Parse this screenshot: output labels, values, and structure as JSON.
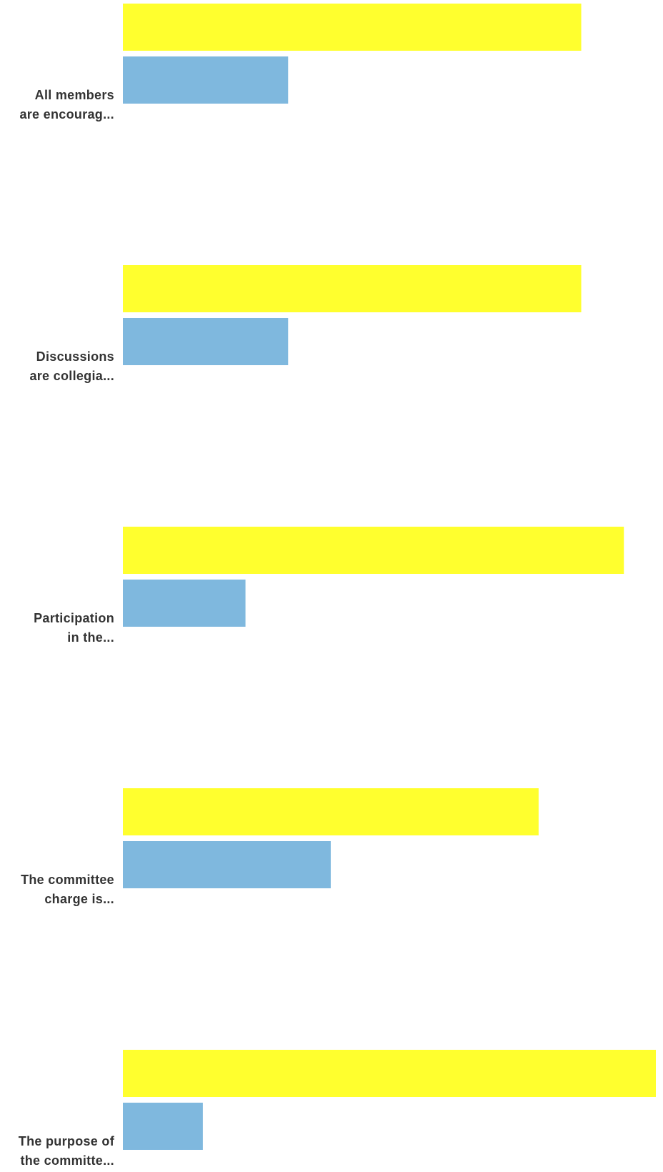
{
  "chart_data": {
    "type": "bar",
    "orientation": "horizontal",
    "categories": [
      [
        "All members",
        "are encourag..."
      ],
      [
        "Discussions",
        "are collegia..."
      ],
      [
        "Participation",
        "in the..."
      ],
      [
        "The committee",
        "charge is..."
      ],
      [
        "The purpose of",
        "the committe..."
      ]
    ],
    "series": [
      {
        "color": "#ffff2e",
        "values": [
          86,
          86,
          94,
          78,
          100
        ]
      },
      {
        "color": "#7fb8de",
        "values": [
          31,
          31,
          23,
          39,
          15
        ]
      }
    ],
    "xlim": [
      0,
      100
    ],
    "grid": false,
    "legend": "none"
  }
}
